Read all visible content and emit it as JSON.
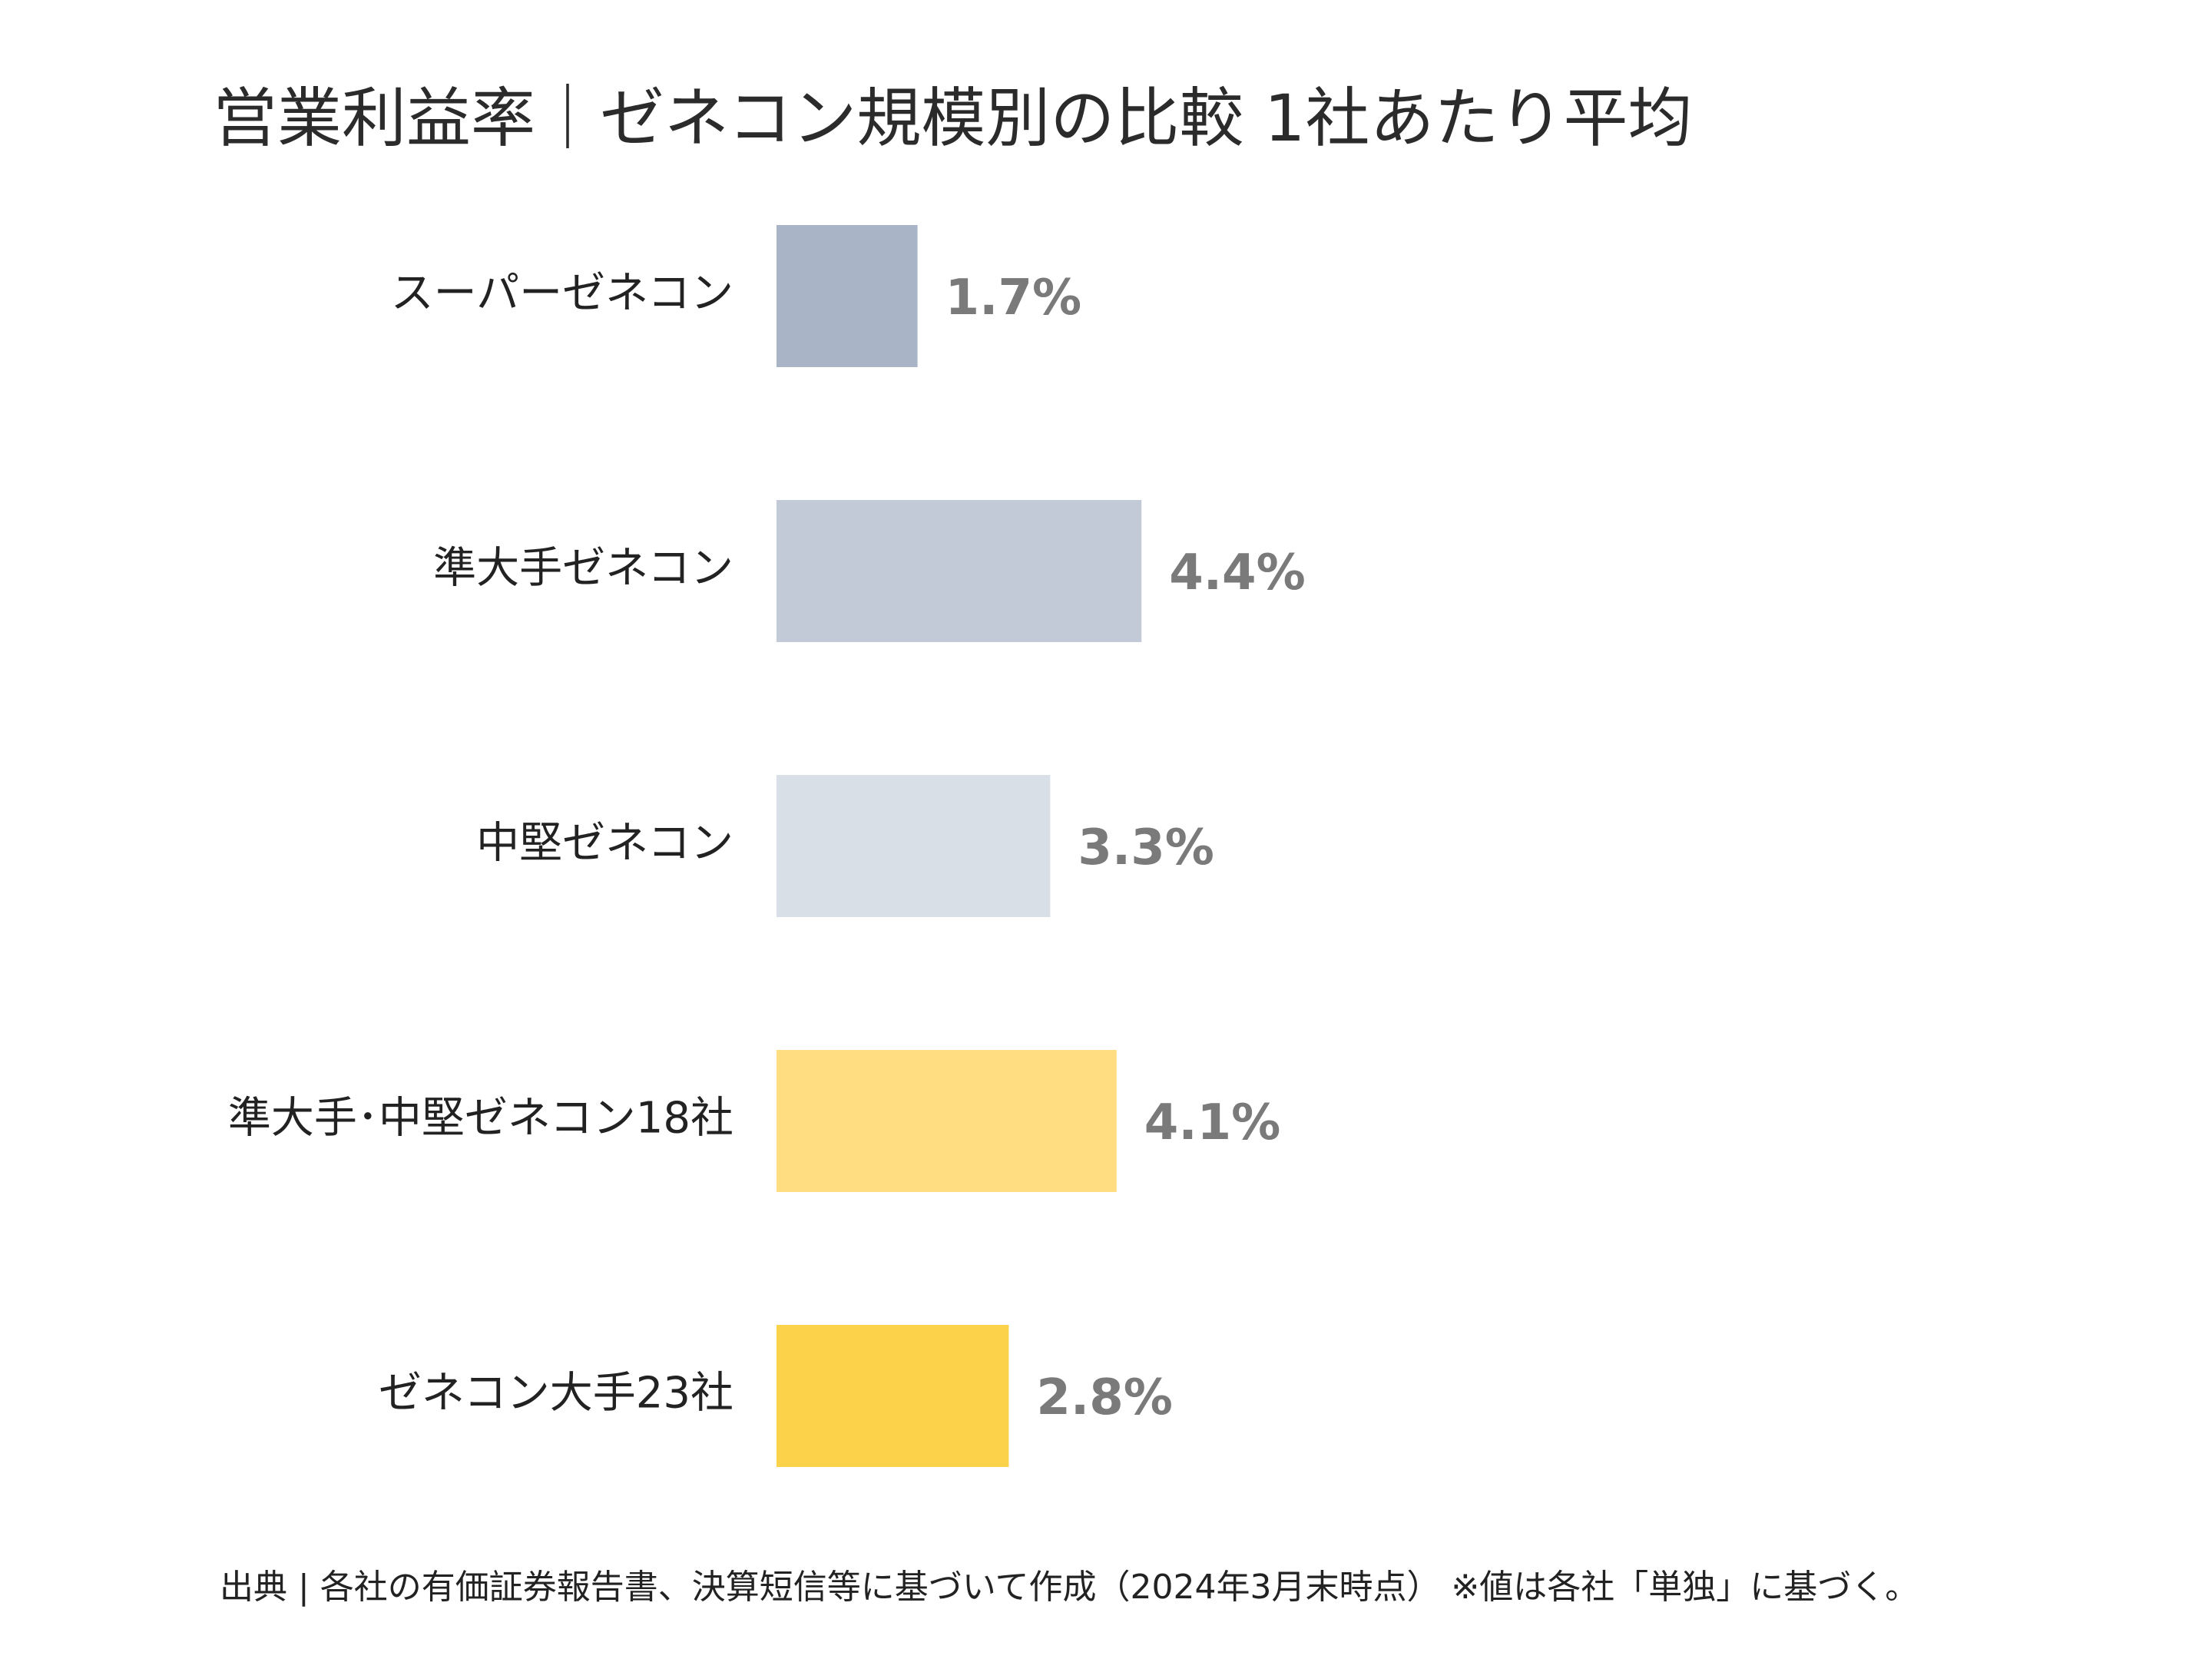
{
  "chart_data": {
    "type": "bar",
    "orientation": "horizontal",
    "title": "営業利益率｜ゼネコン規模別の比較 1社あたり平均",
    "categories": [
      "スーパーゼネコン",
      "準大手ゼネコン",
      "中堅ゼネコン",
      "準大手･中堅ゼネコン18社",
      "ゼネコン大手23社"
    ],
    "values": [
      1.7,
      4.4,
      3.3,
      4.1,
      2.8
    ],
    "value_labels": [
      "1.7%",
      "4.4%",
      "3.3%",
      "4.1%",
      "2.8%"
    ],
    "bar_colors": [
      "#a9b5c6",
      "#c1cad6",
      "#d9dfe7",
      "#ffdd80",
      "#fdd24b"
    ],
    "value_label_color": "#7a7a7a",
    "xlim": [
      0,
      10
    ],
    "grid": false,
    "legend": "none"
  },
  "source_note": "出典 | 各社の有価証券報告書、決算短信等に基づいて作成（2024年3月末時点） ※値は各社「単独」に基づく。"
}
